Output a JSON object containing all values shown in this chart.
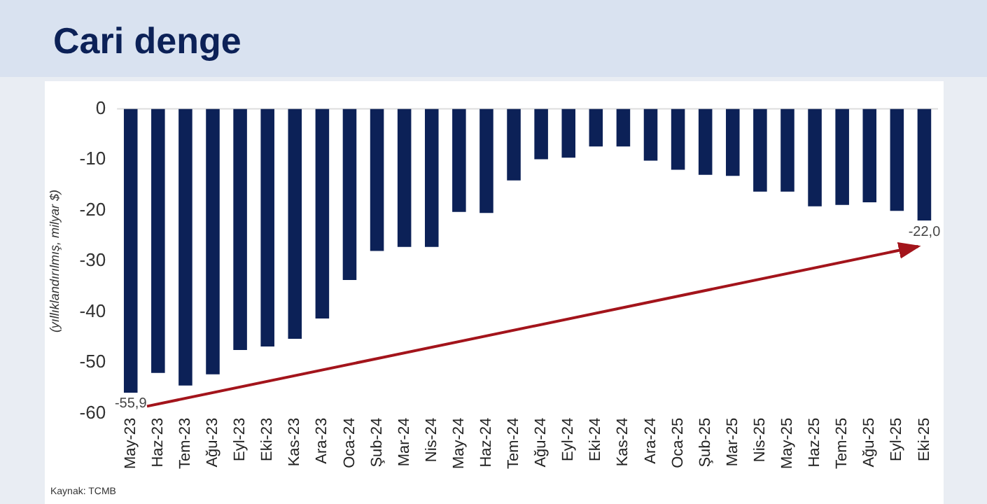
{
  "chart_data": {
    "type": "bar",
    "title": "Cari denge",
    "ylabel": "(yıllıklandırılmış, milyar $)",
    "categories": [
      "May-23",
      "Haz-23",
      "Tem-23",
      "Ağu-23",
      "Eyl-23",
      "Eki-23",
      "Kas-23",
      "Ara-23",
      "Oca-24",
      "Şub-24",
      "Mar-24",
      "Nis-24",
      "May-24",
      "Haz-24",
      "Tem-24",
      "Ağu-24",
      "Eyl-24",
      "Eki-24",
      "Kas-24",
      "Ara-24",
      "Oca-25",
      "Şub-25",
      "Mar-25",
      "Nis-25",
      "May-25",
      "Haz-25",
      "Tem-25",
      "Ağu-25",
      "Eyl-25",
      "Eki-25"
    ],
    "values": [
      -55.9,
      -52,
      -54.5,
      -52.3,
      -47.5,
      -46.8,
      -45.3,
      -41.3,
      -33.7,
      -28,
      -27.2,
      -27.2,
      -20.3,
      -20.5,
      -14.1,
      -9.9,
      -9.6,
      -7.4,
      -7.4,
      -10.2,
      -12,
      -13,
      -13.2,
      -16.3,
      -16.3,
      -19.2,
      -18.9,
      -18.4,
      -20.1,
      -22.0
    ],
    "value_labels": [
      "-55,9",
      null,
      null,
      null,
      null,
      null,
      null,
      null,
      null,
      null,
      null,
      null,
      null,
      null,
      null,
      null,
      null,
      null,
      null,
      null,
      null,
      null,
      null,
      null,
      null,
      null,
      null,
      null,
      null,
      "-22,0"
    ],
    "color": "#0c2157",
    "ylim": [
      -60,
      0
    ],
    "yticks": [
      -60,
      -50,
      -40,
      -30,
      -20,
      -10,
      0
    ],
    "grid": false,
    "legend": false,
    "annotations": [
      "Kaynak: TCMB"
    ]
  }
}
